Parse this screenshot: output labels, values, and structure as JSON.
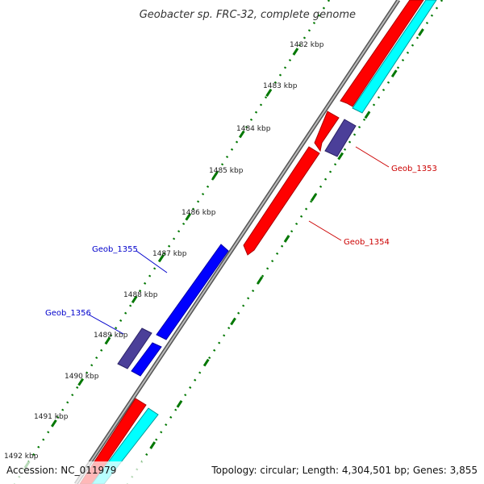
{
  "title": "Geobacter sp. FRC-32, complete genome",
  "footer": {
    "accession": "Accession: NC_011979",
    "summary": "Topology: circular; Length: 4,304,501 bp; Genes: 3,855"
  },
  "ticks": [
    "1482 kbp",
    "1483 kbp",
    "1484 kbp",
    "1485 kbp",
    "1486 kbp",
    "1487 kbp",
    "1488 kbp",
    "1489 kbp",
    "1490 kbp",
    "1491 kbp",
    "1492 kbp"
  ],
  "genes": [
    {
      "label": "Geob_1353",
      "strand": "forward",
      "color": "#cc0000"
    },
    {
      "label": "Geob_1354",
      "strand": "forward",
      "color": "#cc0000"
    },
    {
      "label": "Geob_1355",
      "strand": "reverse",
      "color": "#0000cc"
    },
    {
      "label": "Geob_1356",
      "strand": "reverse",
      "color": "#0000cc"
    }
  ],
  "colors": {
    "backbone": "#808080",
    "forward_cds": "#ff0000",
    "forward_gene": "#00ffff",
    "reverse_cds": "#0000ff",
    "reverse_gene": "#4b3f99",
    "tick_marks": "#007700"
  }
}
